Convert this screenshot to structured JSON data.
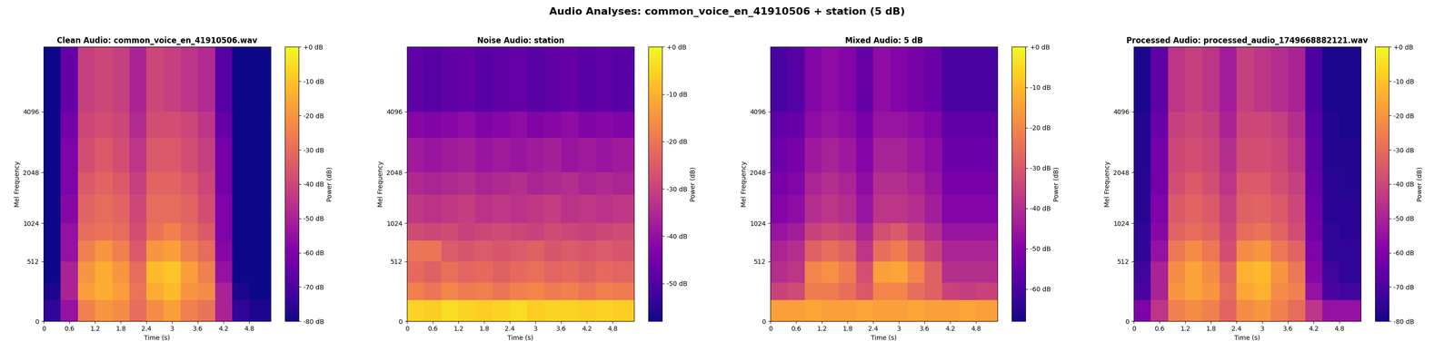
{
  "title": "Audio Analyses: common_voice_en_41910506 + station (5 dB)",
  "chart_data": [
    {
      "type": "heatmap",
      "title": "Clean Audio: common_voice_en_41910506.wav",
      "x_label": "Time (s)",
      "y_label": "Mel Frequency",
      "color": "plasma",
      "xlim": [
        0,
        5.3
      ],
      "xticks": [
        0,
        0.6,
        1.2,
        1.8,
        2.4,
        3,
        3.6,
        4.2,
        4.8
      ],
      "ylim": [
        0,
        8000
      ],
      "yticks": [
        0,
        512,
        1024,
        2048,
        4096
      ],
      "time_edges": [
        0,
        0.4,
        0.8,
        1.2,
        1.6,
        2.0,
        2.4,
        2.8,
        3.2,
        3.6,
        4.0,
        4.4,
        4.8,
        5.3
      ],
      "freq_edges": [
        0,
        150,
        300,
        512,
        768,
        1024,
        1536,
        2048,
        3072,
        4096,
        8000
      ],
      "cells": [
        [
          -75,
          -55,
          -25,
          -20,
          -22,
          -30,
          -22,
          -18,
          -25,
          -28,
          -50,
          -75,
          -78
        ],
        [
          -78,
          -50,
          -18,
          -15,
          -18,
          -28,
          -15,
          -12,
          -20,
          -22,
          -50,
          -78,
          -80
        ],
        [
          -80,
          -50,
          -20,
          -15,
          -20,
          -30,
          -12,
          -10,
          -18,
          -25,
          -55,
          -80,
          -80
        ],
        [
          -80,
          -55,
          -25,
          -20,
          -25,
          -35,
          -20,
          -18,
          -25,
          -30,
          -58,
          -80,
          -80
        ],
        [
          -80,
          -55,
          -30,
          -28,
          -30,
          -38,
          -28,
          -25,
          -30,
          -35,
          -60,
          -80,
          -80
        ],
        [
          -80,
          -58,
          -32,
          -30,
          -32,
          -40,
          -30,
          -30,
          -32,
          -38,
          -60,
          -80,
          -80
        ],
        [
          -80,
          -60,
          -35,
          -32,
          -35,
          -42,
          -32,
          -32,
          -35,
          -40,
          -62,
          -80,
          -80
        ],
        [
          -80,
          -60,
          -38,
          -35,
          -38,
          -45,
          -35,
          -35,
          -38,
          -42,
          -62,
          -80,
          -80
        ],
        [
          -80,
          -62,
          -40,
          -38,
          -40,
          -48,
          -38,
          -38,
          -40,
          -45,
          -65,
          -80,
          -80
        ],
        [
          -80,
          -65,
          -42,
          -40,
          -42,
          -50,
          -40,
          -42,
          -45,
          -48,
          -68,
          -80,
          -80
        ]
      ],
      "colorbar_label": "Power (dB)",
      "colorbar_range": [
        -80,
        0
      ],
      "colorbar_ticks": [
        {
          "value": 0,
          "label": "+0 dB"
        },
        {
          "value": -10,
          "label": "-10 dB"
        },
        {
          "value": -20,
          "label": "-20 dB"
        },
        {
          "value": -30,
          "label": "-30 dB"
        },
        {
          "value": -40,
          "label": "-40 dB"
        },
        {
          "value": -50,
          "label": "-50 dB"
        },
        {
          "value": -60,
          "label": "-60 dB"
        },
        {
          "value": -70,
          "label": "-70 dB"
        },
        {
          "value": -80,
          "label": "-80 dB"
        }
      ]
    },
    {
      "type": "heatmap",
      "title": "Noise Audio: station",
      "x_label": "Time (s)",
      "y_label": "Mel Frequency",
      "color": "plasma",
      "xlim": [
        0,
        5.3
      ],
      "xticks": [
        0,
        0.6,
        1.2,
        1.8,
        2.4,
        3,
        3.6,
        4.2,
        4.8
      ],
      "ylim": [
        0,
        8000
      ],
      "yticks": [
        0,
        512,
        1024,
        2048,
        4096
      ],
      "time_edges": [
        0,
        0.4,
        0.8,
        1.2,
        1.6,
        2.0,
        2.4,
        2.8,
        3.2,
        3.6,
        4.0,
        4.4,
        4.8,
        5.3
      ],
      "freq_edges": [
        0,
        150,
        300,
        512,
        768,
        1024,
        1536,
        2048,
        3072,
        4096,
        8000
      ],
      "cells": [
        [
          -5,
          -6,
          -4,
          -5,
          -6,
          -5,
          -4,
          -6,
          -5,
          -5,
          -6,
          -5,
          -6
        ],
        [
          -18,
          -20,
          -17,
          -19,
          -18,
          -20,
          -18,
          -17,
          -19,
          -18,
          -20,
          -18,
          -19
        ],
        [
          -22,
          -24,
          -21,
          -23,
          -22,
          -24,
          -22,
          -21,
          -23,
          -22,
          -24,
          -22,
          -23
        ],
        [
          -20,
          -20,
          -25,
          -26,
          -25,
          -26,
          -25,
          -24,
          -26,
          -25,
          -26,
          -25,
          -26
        ],
        [
          -28,
          -29,
          -28,
          -30,
          -29,
          -28,
          -29,
          -30,
          -28,
          -29,
          -30,
          -29,
          -28
        ],
        [
          -32,
          -33,
          -32,
          -31,
          -33,
          -32,
          -33,
          -32,
          -31,
          -33,
          -32,
          -33,
          -32
        ],
        [
          -35,
          -36,
          -35,
          -34,
          -36,
          -35,
          -34,
          -36,
          -35,
          -34,
          -36,
          -35,
          -36
        ],
        [
          -38,
          -39,
          -38,
          -37,
          -39,
          -38,
          -39,
          -38,
          -37,
          -39,
          -38,
          -39,
          -38
        ],
        [
          -42,
          -43,
          -42,
          -41,
          -43,
          -42,
          -41,
          -43,
          -42,
          -41,
          -43,
          -42,
          -43
        ],
        [
          -48,
          -49,
          -48,
          -47,
          -49,
          -48,
          -47,
          -49,
          -48,
          -47,
          -49,
          -48,
          -49
        ]
      ],
      "colorbar_label": "Power (dB)",
      "colorbar_range": [
        -58,
        0
      ],
      "colorbar_ticks": [
        {
          "value": 0,
          "label": "+0 dB"
        },
        {
          "value": -10,
          "label": "-10 dB"
        },
        {
          "value": -20,
          "label": "-20 dB"
        },
        {
          "value": -30,
          "label": "-30 dB"
        },
        {
          "value": -40,
          "label": "-40 dB"
        },
        {
          "value": -50,
          "label": "-50 dB"
        }
      ]
    },
    {
      "type": "heatmap",
      "title": "Mixed Audio: 5 dB",
      "x_label": "Time (s)",
      "y_label": "Mel Frequency",
      "color": "plasma",
      "xlim": [
        0,
        5.3
      ],
      "xticks": [
        0,
        0.6,
        1.2,
        1.8,
        2.4,
        3,
        3.6,
        4.2,
        4.8
      ],
      "ylim": [
        0,
        8000
      ],
      "yticks": [
        0,
        512,
        1024,
        2048,
        4096
      ],
      "time_edges": [
        0,
        0.4,
        0.8,
        1.2,
        1.6,
        2.0,
        2.4,
        2.8,
        3.2,
        3.6,
        4.0,
        4.4,
        4.8,
        5.3
      ],
      "freq_edges": [
        0,
        150,
        300,
        512,
        768,
        1024,
        1536,
        2048,
        3072,
        4096,
        8000
      ],
      "cells": [
        [
          -15,
          -15,
          -14,
          -15,
          -15,
          -14,
          -15,
          -15,
          -14,
          -15,
          -15,
          -14,
          -15
        ],
        [
          -35,
          -33,
          -22,
          -22,
          -25,
          -30,
          -20,
          -20,
          -25,
          -28,
          -35,
          -36,
          -35
        ],
        [
          -40,
          -38,
          -20,
          -18,
          -22,
          -32,
          -15,
          -14,
          -20,
          -28,
          -40,
          -40,
          -40
        ],
        [
          -42,
          -40,
          -28,
          -25,
          -28,
          -38,
          -25,
          -22,
          -28,
          -35,
          -42,
          -42,
          -42
        ],
        [
          -46,
          -44,
          -35,
          -33,
          -35,
          -42,
          -32,
          -30,
          -35,
          -40,
          -46,
          -46,
          -46
        ],
        [
          -50,
          -48,
          -40,
          -38,
          -40,
          -46,
          -38,
          -38,
          -40,
          -44,
          -50,
          -50,
          -50
        ],
        [
          -52,
          -50,
          -42,
          -40,
          -42,
          -48,
          -40,
          -40,
          -42,
          -46,
          -52,
          -52,
          -52
        ],
        [
          -54,
          -52,
          -45,
          -43,
          -45,
          -50,
          -43,
          -43,
          -45,
          -48,
          -54,
          -54,
          -54
        ],
        [
          -56,
          -55,
          -48,
          -46,
          -48,
          -52,
          -46,
          -46,
          -48,
          -50,
          -56,
          -56,
          -56
        ],
        [
          -60,
          -58,
          -50,
          -48,
          -50,
          -55,
          -48,
          -50,
          -52,
          -54,
          -60,
          -60,
          -60
        ]
      ],
      "colorbar_label": "Power (dB)",
      "colorbar_range": [
        -68,
        0
      ],
      "colorbar_ticks": [
        {
          "value": 0,
          "label": "+0 dB"
        },
        {
          "value": -10,
          "label": "-10 dB"
        },
        {
          "value": -20,
          "label": "-20 dB"
        },
        {
          "value": -30,
          "label": "-30 dB"
        },
        {
          "value": -40,
          "label": "-40 dB"
        },
        {
          "value": -50,
          "label": "-50 dB"
        },
        {
          "value": -60,
          "label": "-60 dB"
        }
      ]
    },
    {
      "type": "heatmap",
      "title": "Processed Audio: processed_audio_1749668882121.wav",
      "x_label": "Time (s)",
      "y_label": "Mel Frequency",
      "color": "plasma",
      "xlim": [
        0,
        5.3
      ],
      "xticks": [
        0,
        0.6,
        1.2,
        1.8,
        2.4,
        3,
        3.6,
        4.2,
        4.8
      ],
      "ylim": [
        0,
        8000
      ],
      "yticks": [
        0,
        512,
        1024,
        2048,
        4096
      ],
      "time_edges": [
        0,
        0.4,
        0.8,
        1.2,
        1.6,
        2.0,
        2.4,
        2.8,
        3.2,
        3.6,
        4.0,
        4.4,
        4.8,
        5.3
      ],
      "freq_edges": [
        0,
        150,
        300,
        512,
        768,
        1024,
        1536,
        2048,
        3072,
        4096,
        8000
      ],
      "cells": [
        [
          -60,
          -45,
          -25,
          -22,
          -25,
          -32,
          -22,
          -20,
          -25,
          -30,
          -45,
          -55,
          -55
        ],
        [
          -70,
          -50,
          -20,
          -17,
          -20,
          -30,
          -16,
          -14,
          -22,
          -25,
          -55,
          -70,
          -72
        ],
        [
          -72,
          -50,
          -22,
          -17,
          -22,
          -32,
          -14,
          -12,
          -20,
          -27,
          -58,
          -72,
          -75
        ],
        [
          -75,
          -55,
          -27,
          -22,
          -27,
          -38,
          -22,
          -20,
          -27,
          -32,
          -60,
          -75,
          -75
        ],
        [
          -75,
          -58,
          -32,
          -30,
          -32,
          -40,
          -30,
          -28,
          -32,
          -38,
          -62,
          -75,
          -76
        ],
        [
          -76,
          -60,
          -35,
          -32,
          -35,
          -42,
          -33,
          -32,
          -35,
          -40,
          -63,
          -76,
          -76
        ],
        [
          -76,
          -62,
          -38,
          -35,
          -38,
          -45,
          -35,
          -35,
          -38,
          -42,
          -65,
          -76,
          -77
        ],
        [
          -77,
          -62,
          -40,
          -38,
          -40,
          -47,
          -38,
          -38,
          -40,
          -45,
          -66,
          -77,
          -77
        ],
        [
          -77,
          -64,
          -42,
          -40,
          -42,
          -50,
          -40,
          -40,
          -42,
          -47,
          -68,
          -77,
          -78
        ],
        [
          -78,
          -66,
          -45,
          -42,
          -45,
          -52,
          -42,
          -45,
          -47,
          -50,
          -70,
          -78,
          -78
        ]
      ],
      "colorbar_label": "Power (dB)",
      "colorbar_range": [
        -80,
        0
      ],
      "colorbar_ticks": [
        {
          "value": 0,
          "label": "+0 dB"
        },
        {
          "value": -10,
          "label": "-10 dB"
        },
        {
          "value": -20,
          "label": "-20 dB"
        },
        {
          "value": -30,
          "label": "-30 dB"
        },
        {
          "value": -40,
          "label": "-40 dB"
        },
        {
          "value": -50,
          "label": "-50 dB"
        },
        {
          "value": -60,
          "label": "-60 dB"
        },
        {
          "value": -70,
          "label": "-70 dB"
        },
        {
          "value": -80,
          "label": "-80 dB"
        }
      ]
    }
  ]
}
